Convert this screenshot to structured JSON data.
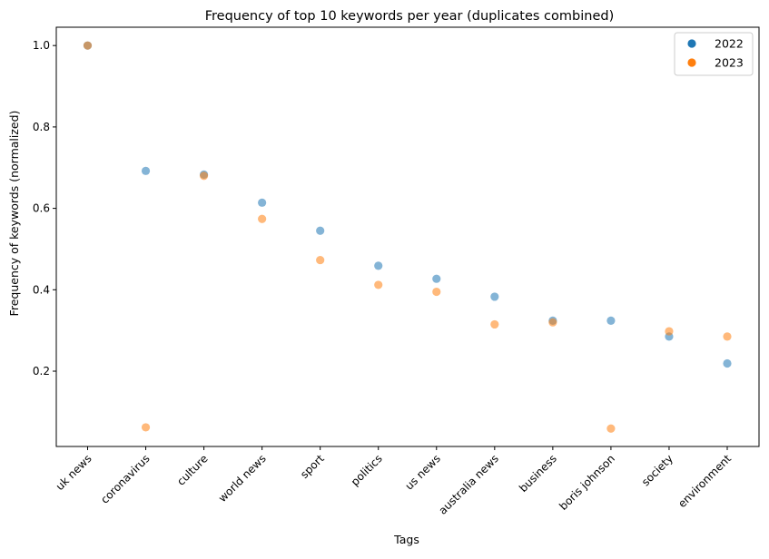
{
  "chart_data": {
    "type": "scatter",
    "title": "Frequency of top 10 keywords per year (duplicates combined)",
    "xlabel": "Tags",
    "ylabel": "Frequency of keywords (normalized)",
    "categories": [
      "uk news",
      "coronavirus",
      "culture",
      "world news",
      "sport",
      "politics",
      "us news",
      "australia news",
      "business",
      "boris johnson",
      "society",
      "environment"
    ],
    "ylim": [
      0.015,
      1.045
    ],
    "yticks": [
      0.2,
      0.4,
      0.6,
      0.8,
      1.0
    ],
    "ytick_labels": [
      "0.2",
      "0.4",
      "0.6",
      "0.8",
      "1.0"
    ],
    "grid": false,
    "legend_position": "top-right",
    "series": [
      {
        "name": "2022",
        "color": "#1f77b4",
        "values": [
          1.0,
          0.692,
          0.683,
          0.614,
          0.545,
          0.459,
          0.427,
          0.383,
          0.324,
          0.324,
          0.285,
          0.219
        ]
      },
      {
        "name": "2023",
        "color": "#ff7f0e",
        "values": [
          1.0,
          0.062,
          0.68,
          0.574,
          0.473,
          0.412,
          0.395,
          0.315,
          0.32,
          0.059,
          0.298,
          0.285
        ]
      }
    ]
  }
}
